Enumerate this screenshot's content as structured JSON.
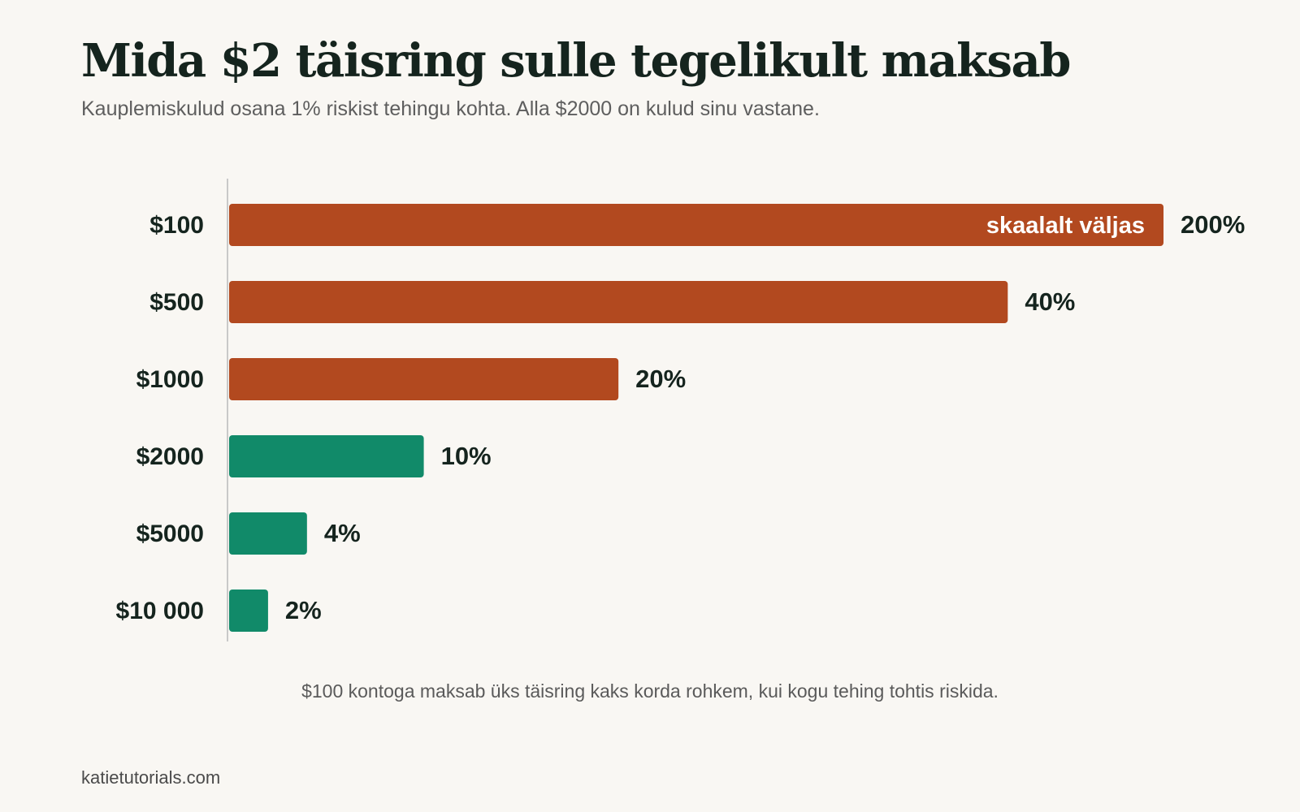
{
  "title": "Mida $2 täisring sulle tegelikult maksab",
  "subtitle": "Kauplemiskulud osana 1% riskist tehingu kohta. Alla $2000 on kulud sinu vastane.",
  "footnote": "$100 kontoga maksab üks täisring kaks korda rohkem, kui kogu tehing tohtis riskida.",
  "source": "katietutorials.com",
  "colors": {
    "loss": "#b2491f",
    "ok": "#118a69",
    "background": "#f9f7f3",
    "text": "#15241e"
  },
  "chart_data": {
    "type": "bar",
    "orientation": "horizontal",
    "categories": [
      "$100",
      "$500",
      "$1000",
      "$2000",
      "$5000",
      "$10 000"
    ],
    "values": [
      200,
      40,
      20,
      10,
      4,
      2
    ],
    "value_labels": [
      "200%",
      "40%",
      "20%",
      "10%",
      "4%",
      "2%"
    ],
    "bar_colors": [
      "loss",
      "loss",
      "loss",
      "ok",
      "ok",
      "ok"
    ],
    "clipped": [
      {
        "index": 0,
        "label": "skaalalt väljas"
      }
    ],
    "xlim": [
      0,
      48
    ],
    "title": "",
    "xlabel": "",
    "ylabel": "",
    "grid": false,
    "legend": false
  }
}
